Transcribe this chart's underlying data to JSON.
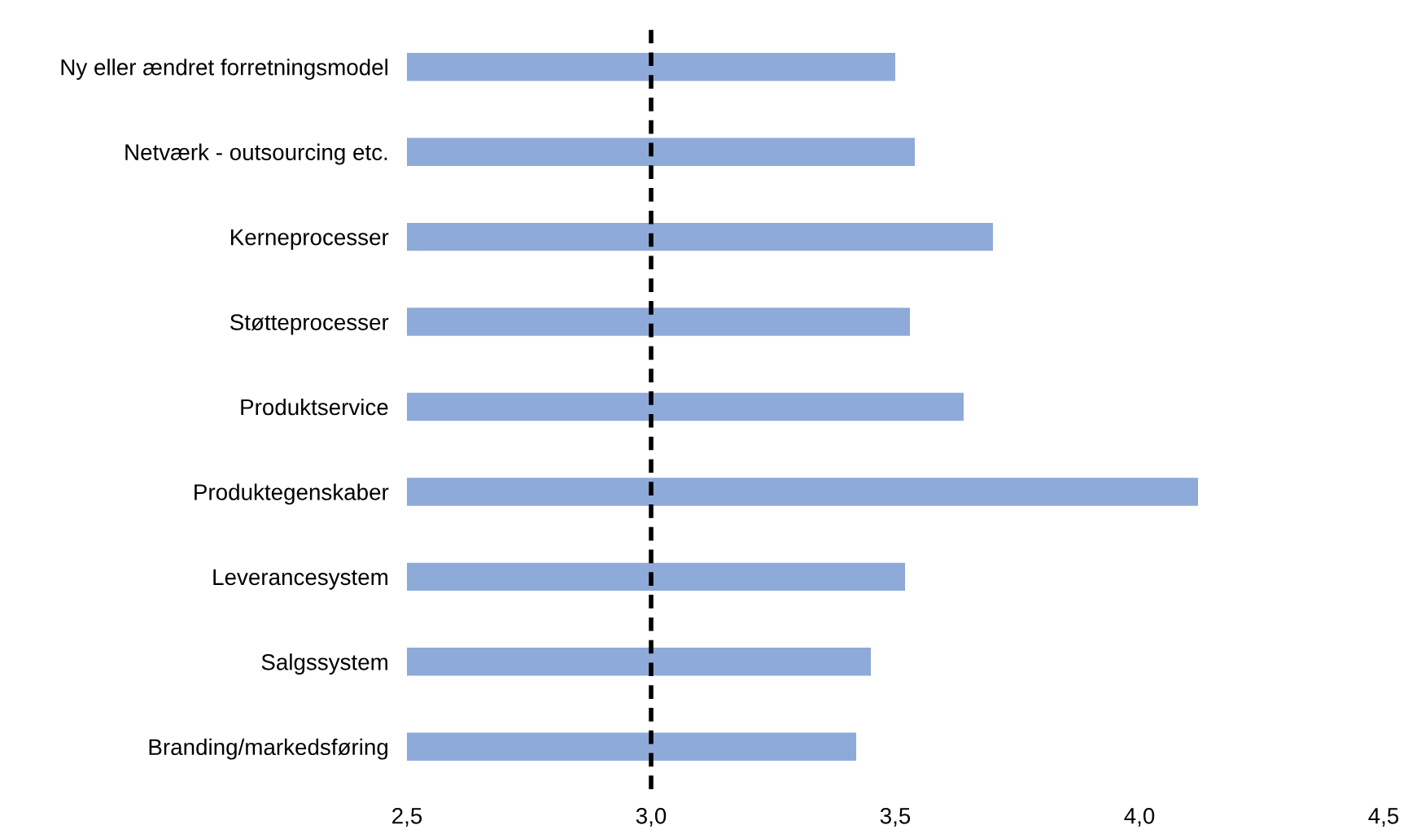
{
  "chart_data": {
    "type": "bar",
    "orientation": "horizontal",
    "categories": [
      "Ny eller ændret forretningsmodel",
      "Netværk - outsourcing etc.",
      "Kerneprocesser",
      "Støtteprocesser",
      "Produktservice",
      "Produktegenskaber",
      "Leverancesystem",
      "Salgssystem",
      "Branding/markedsføring"
    ],
    "values": [
      3.5,
      3.54,
      3.7,
      3.53,
      3.64,
      4.12,
      3.52,
      3.45,
      3.42
    ],
    "color": "#8eaad9",
    "xlim": [
      2.5,
      4.5
    ],
    "xticks": [
      {
        "value": 2.5,
        "label": "2,5"
      },
      {
        "value": 3.0,
        "label": "3,0"
      },
      {
        "value": 3.5,
        "label": "3,5"
      },
      {
        "value": 4.0,
        "label": "4,0"
      },
      {
        "value": 4.5,
        "label": "4,5"
      }
    ],
    "ref_lines": [
      {
        "axis": "x",
        "value": 3.0,
        "label": null,
        "color": "#000000",
        "line_style": "dashed"
      }
    ],
    "grid": false,
    "legend": false
  }
}
